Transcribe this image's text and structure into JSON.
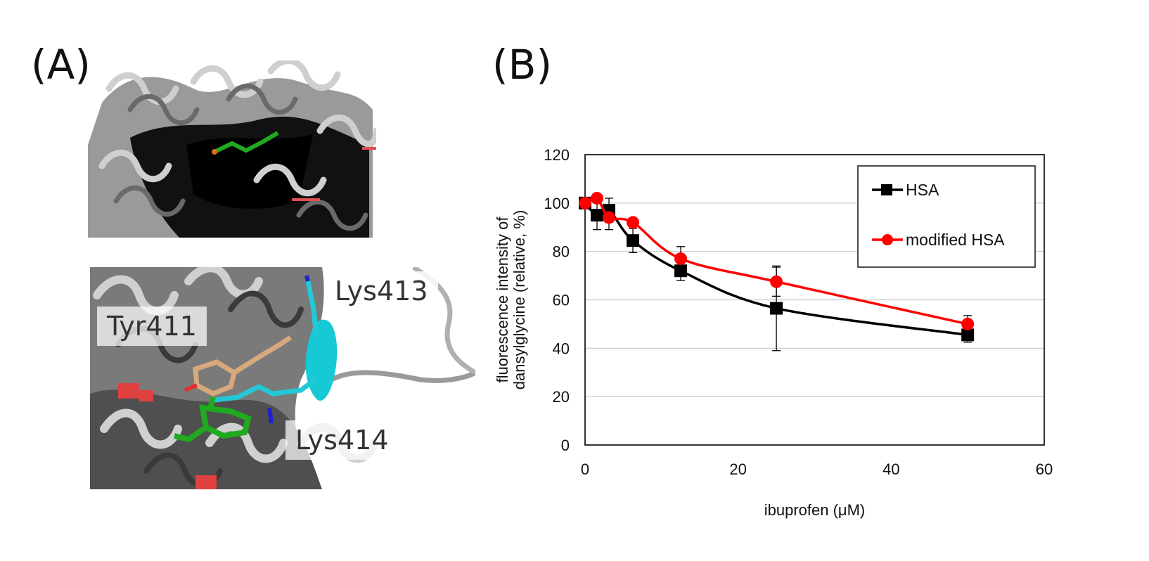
{
  "panels": {
    "a_label": "(A)",
    "b_label": "(B)"
  },
  "structure": {
    "residue_labels": [
      "Tyr411",
      "Lys413",
      "Lys414"
    ],
    "colors": {
      "helix": "#6e6e6e",
      "helix_dark": "#0a0a0a",
      "ligand": "#1faa1f",
      "tyr": "#d7a97c",
      "lys": "#22c8d6",
      "oxygen": "#e03030",
      "nitrogen": "#2020d0"
    }
  },
  "chart_data": {
    "type": "line",
    "title": "",
    "xlabel": "ibuprofen (μM)",
    "ylabel_line1": "fluorescence  intensity of",
    "ylabel_line2": "dansylglycine  (relative,  %)",
    "xlim": [
      0,
      60
    ],
    "ylim": [
      0,
      120
    ],
    "xticks": [
      0,
      20,
      40,
      60
    ],
    "yticks": [
      0,
      20,
      40,
      60,
      80,
      100,
      120
    ],
    "grid": "horizontal",
    "legend_position": "top-right",
    "series": [
      {
        "name": "HSA",
        "color": "#000000",
        "marker": "square",
        "x": [
          0,
          1.5625,
          3.125,
          6.25,
          12.5,
          25,
          50
        ],
        "y": [
          100,
          95,
          97,
          84.5,
          72,
          56.5,
          45.5
        ],
        "err": [
          2,
          6,
          5,
          5,
          4,
          17.5,
          3
        ]
      },
      {
        "name": "modified HSA",
        "color": "#ff0000",
        "marker": "circle",
        "x": [
          0,
          1.5625,
          3.125,
          6.25,
          12.5,
          25,
          50
        ],
        "y": [
          100,
          102,
          94,
          92,
          77,
          67.5,
          50
        ],
        "err": [
          1.5,
          1.5,
          5,
          1.5,
          5,
          6,
          3.5
        ]
      }
    ]
  }
}
